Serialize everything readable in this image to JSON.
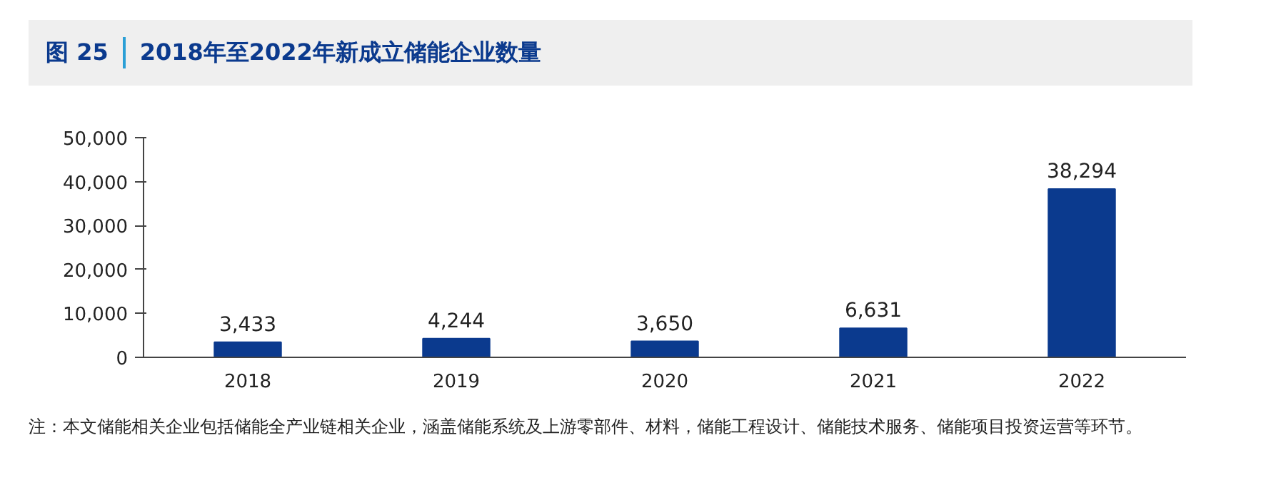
{
  "chart_data": {
    "type": "bar",
    "title": "2018年至2022年新成立储能企业数量",
    "categories": [
      "2018",
      "2019",
      "2020",
      "2021",
      "2022"
    ],
    "values": [
      3433,
      4244,
      3650,
      6631,
      38294
    ],
    "value_labels": [
      "3,433",
      "4,244",
      "3,650",
      "6,631",
      "38,294"
    ],
    "color": "#0b3a8e",
    "ylim": [
      0,
      50000
    ],
    "yticks": [
      0,
      {
        "value": 10000,
        "label": "10,000"
      },
      {
        "value": 20000,
        "label": "20,000"
      },
      {
        "value": 30000,
        "label": "30,000"
      },
      {
        "value": 40000,
        "label": "40,000"
      },
      {
        "value": 50000,
        "label": "50,000"
      }
    ],
    "grid": false,
    "annotations": [
      "图 25",
      "注：本文储能相关企业包括储能全产业链相关企业，涵盖储能系统及上游零部件、材料，储能工程设计、储能技术服务、储能项目投资运营等环节。"
    ]
  }
}
